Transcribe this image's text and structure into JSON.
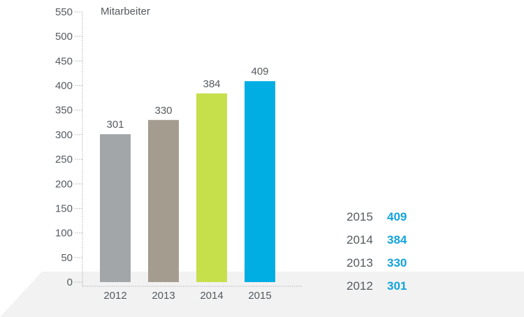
{
  "chart_data": {
    "type": "bar",
    "ylabel": "Mitarbeiter",
    "categories": [
      "2012",
      "2013",
      "2014",
      "2015"
    ],
    "values": [
      301,
      330,
      384,
      409
    ],
    "ylim": [
      0,
      550
    ],
    "yticks": [
      "0",
      "50",
      "100",
      "150",
      "200",
      "250",
      "300",
      "350",
      "400",
      "450",
      "500",
      "550"
    ],
    "bar_colors": [
      "#a2a6a8",
      "#a59c90",
      "#c5e04b",
      "#01aee3"
    ],
    "grid": false,
    "legend": "none"
  },
  "summary": {
    "rows": [
      {
        "year": "2015",
        "value": "409"
      },
      {
        "year": "2014",
        "value": "384"
      },
      {
        "year": "2013",
        "value": "330"
      },
      {
        "year": "2012",
        "value": "301"
      }
    ],
    "value_color": "#12a3dc"
  }
}
